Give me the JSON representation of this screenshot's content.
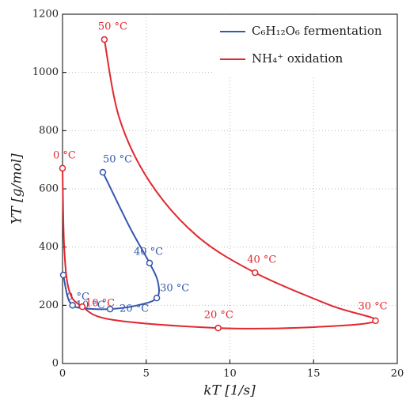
{
  "chart_data": {
    "type": "line",
    "xlabel": "kT [1/s]",
    "ylabel": "YT [g/mol]",
    "xlim": [
      0,
      20
    ],
    "xticks": [
      0,
      5,
      10,
      15,
      20
    ],
    "ylim": [
      0,
      1200
    ],
    "yticks": [
      0,
      200,
      400,
      600,
      800,
      1000,
      1200
    ],
    "grid": true,
    "legend": "upper right",
    "series": [
      {
        "name": "C₆H₁₂O₆ fermentation",
        "color": "#3557ad",
        "x": [
          0.05,
          0.3,
          0.6,
          1.2,
          2.84,
          4.5,
          5.63,
          5.7,
          5.2,
          4.0,
          2.41
        ],
        "values": [
          304,
          230,
          200,
          190,
          187,
          200,
          225,
          280,
          345,
          470,
          657
        ],
        "points": [
          {
            "label": "0 °C",
            "x": 0.05,
            "y": 304
          },
          {
            "label": "10 °C",
            "x": 0.6,
            "y": 200
          },
          {
            "label": "20 °C",
            "x": 2.84,
            "y": 187
          },
          {
            "label": "30 °C",
            "x": 5.63,
            "y": 225
          },
          {
            "label": "40 °C",
            "x": 5.2,
            "y": 345
          },
          {
            "label": "50 °C",
            "x": 2.41,
            "y": 657
          }
        ]
      },
      {
        "name": "NH₄⁺ oxidation",
        "color": "#e0282e",
        "x": [
          0,
          0.1,
          0.4,
          1.18,
          3.0,
          9.3,
          15.0,
          18.7,
          16.0,
          11.5,
          8.0,
          5.2,
          3.4,
          2.5
        ],
        "values": [
          671,
          400,
          250,
          195,
          150,
          122,
          125,
          147,
          200,
          312,
          440,
          625,
          842,
          1113
        ],
        "points": [
          {
            "label": "0 °C",
            "x": 0,
            "y": 671
          },
          {
            "label": "10 °C",
            "x": 1.18,
            "y": 195
          },
          {
            "label": "20 °C",
            "x": 9.3,
            "y": 122
          },
          {
            "label": "30 °C",
            "x": 18.7,
            "y": 147
          },
          {
            "label": "40 °C",
            "x": 11.5,
            "y": 312
          },
          {
            "label": "50 °C",
            "x": 2.5,
            "y": 1113
          }
        ]
      }
    ]
  }
}
